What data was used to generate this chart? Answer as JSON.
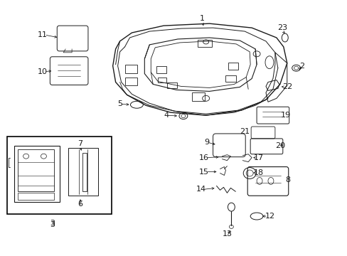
{
  "bg_color": "#ffffff",
  "lw": 0.8,
  "gray": "#222222"
}
